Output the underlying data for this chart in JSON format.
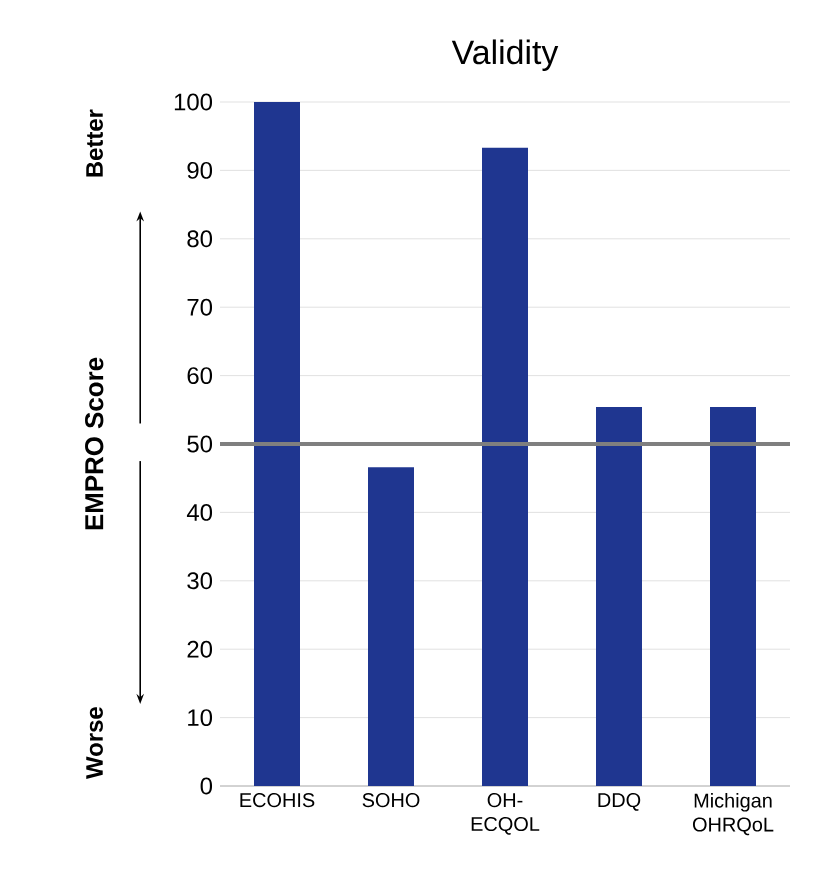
{
  "chart_data": {
    "type": "bar",
    "title": "Validity",
    "ylabel": "EMPRO Score",
    "categories": [
      "ECOHIS",
      "SOHO",
      "OH-ECQOL",
      "DDQ",
      "Michigan OHRQoL"
    ],
    "values": [
      100,
      46.6,
      93.3,
      55.4,
      55.4
    ],
    "color": "#1f3690",
    "ylim": [
      0,
      100
    ],
    "yticks": [
      0,
      10,
      20,
      30,
      40,
      50,
      60,
      70,
      80,
      90,
      100
    ],
    "grid": "y",
    "ref_lines": [
      {
        "axis": "y",
        "value": 50,
        "color": "#7f7f7f"
      }
    ],
    "annotations": [
      "Better",
      "Worse"
    ]
  }
}
